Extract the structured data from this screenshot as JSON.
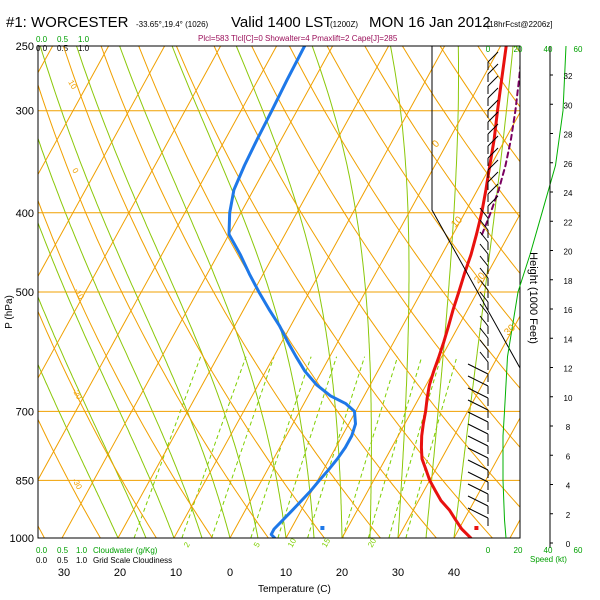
{
  "chart_data": {
    "type": "skew-t",
    "title": {
      "station": "#1: WORCESTER",
      "coords": "-33.65°,19.4° (1026)",
      "valid": "Valid 1400 LST",
      "utc": "(1200Z)",
      "date": "MON 16 Jan 2012",
      "forecast": "[18hrFcst@2206z]"
    },
    "subtitle": "Plcl=583 Tlcl[C]=0 Showalter=4 Pmaxlift=2 Cape[J]=285",
    "xlabel": "Temperature (C)",
    "ylabel": "P (hPa)",
    "pressure_ticks": [
      250,
      300,
      400,
      500,
      700,
      850,
      1000
    ],
    "temperature_ticks": [
      0,
      10,
      20,
      30,
      40
    ],
    "cloudiness_ticks": [
      "30",
      "20",
      "10"
    ],
    "right_axis_label": "Height (1000 Feet)",
    "height_ticks": [
      0,
      2,
      4,
      6,
      8,
      10,
      12,
      14,
      16,
      18,
      20,
      22,
      24,
      26,
      28,
      30,
      32
    ],
    "speed_ticks_top": [
      "0",
      "20",
      "40",
      "60"
    ],
    "speed_ticks_bottom": [
      "0",
      "20",
      "40",
      "60"
    ],
    "speed_label": "Speed (kt)",
    "cloud_scale_top": [
      "0.0",
      "0.5",
      "1.0"
    ],
    "cloud_scale_top_green": [
      "0.0",
      "0.5",
      "1.0"
    ],
    "cloud_scale_bottom_green": [
      "0.0",
      "0.5",
      "1.0"
    ],
    "cloud_scale_bottom": [
      "0.0",
      "0.5",
      "1.0"
    ],
    "cloudwater_label": "Cloudwater (g/Kg)",
    "gridscale_label": "Grid Scale Cloudiness",
    "mixing_ratio_labels": [
      "2",
      "5",
      "10",
      "15",
      "20"
    ],
    "isotherm_labels": [
      "10",
      "0",
      "-10",
      "-20",
      "-30"
    ],
    "adiabat_labels": [
      "0",
      "10",
      "20",
      "30"
    ],
    "series": [
      {
        "name": "temperature",
        "color": "#e8110f",
        "points": [
          [
            1000,
            43
          ],
          [
            975,
            40.5
          ],
          [
            950,
            38.5
          ],
          [
            925,
            36.5
          ],
          [
            900,
            34
          ],
          [
            875,
            32
          ],
          [
            850,
            30
          ],
          [
            825,
            28.3
          ],
          [
            800,
            26.5
          ],
          [
            775,
            25.3
          ],
          [
            750,
            24.2
          ],
          [
            725,
            23.3
          ],
          [
            700,
            22.5
          ],
          [
            675,
            21.5
          ],
          [
            650,
            20.6
          ],
          [
            625,
            20
          ],
          [
            600,
            19.5
          ],
          [
            575,
            18.9
          ],
          [
            550,
            18.2
          ],
          [
            525,
            17.4
          ],
          [
            500,
            16.7
          ],
          [
            475,
            15.9
          ],
          [
            450,
            15.2
          ],
          [
            425,
            14.2
          ],
          [
            400,
            13
          ],
          [
            375,
            11.5
          ],
          [
            350,
            9.8
          ],
          [
            325,
            8
          ],
          [
            300,
            5.8
          ],
          [
            275,
            3.5
          ],
          [
            250,
            1
          ]
        ]
      },
      {
        "name": "dewpoint",
        "color": "#1e78e8",
        "points": [
          [
            1000,
            8
          ],
          [
            990,
            7
          ],
          [
            975,
            7
          ],
          [
            950,
            7.7
          ],
          [
            925,
            8.4
          ],
          [
            900,
            9.1
          ],
          [
            875,
            9.8
          ],
          [
            850,
            10.3
          ],
          [
            825,
            10.9
          ],
          [
            800,
            11.4
          ],
          [
            775,
            11.7
          ],
          [
            750,
            11.7
          ],
          [
            725,
            11.2
          ],
          [
            700,
            9.8
          ],
          [
            685,
            7.5
          ],
          [
            670,
            4
          ],
          [
            650,
            0.5
          ],
          [
            625,
            -3
          ],
          [
            600,
            -6
          ],
          [
            575,
            -9
          ],
          [
            550,
            -12
          ],
          [
            525,
            -15.5
          ],
          [
            500,
            -19
          ],
          [
            475,
            -22.5
          ],
          [
            450,
            -26
          ],
          [
            425,
            -30
          ],
          [
            400,
            -32
          ],
          [
            375,
            -33.5
          ],
          [
            350,
            -34
          ],
          [
            325,
            -34.3
          ],
          [
            300,
            -34.5
          ],
          [
            275,
            -34.8
          ],
          [
            250,
            -35
          ]
        ]
      },
      {
        "name": "parcel",
        "color": "#7a0060",
        "points": [
          [
            425,
            15.2
          ],
          [
            400,
            14.6
          ],
          [
            375,
            13.8
          ],
          [
            350,
            12.6
          ],
          [
            325,
            11
          ],
          [
            300,
            9
          ],
          [
            275,
            6.6
          ],
          [
            250,
            3.9
          ]
        ]
      },
      {
        "name": "wind_speed_kt",
        "color": "#00b000",
        "points": [
          [
            1000,
            12
          ],
          [
            950,
            11
          ],
          [
            850,
            10
          ],
          [
            750,
            10
          ],
          [
            700,
            11
          ],
          [
            600,
            13
          ],
          [
            500,
            20
          ],
          [
            450,
            28
          ],
          [
            400,
            36
          ],
          [
            350,
            45
          ],
          [
            300,
            50
          ],
          [
            250,
            52
          ]
        ]
      }
    ],
    "surface_markers": [
      {
        "name": "surface-temperature",
        "temp": 44,
        "color": "#e8110f"
      },
      {
        "name": "surface-dewpoint",
        "temp": 16.5,
        "color": "#1e78e8"
      }
    ]
  }
}
